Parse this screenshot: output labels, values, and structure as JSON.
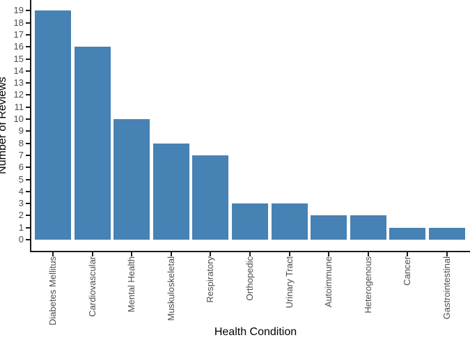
{
  "figure": {
    "background_color": "#ffffff"
  },
  "chart_data": {
    "type": "bar",
    "title": "",
    "xlabel": "Health Condition",
    "ylabel": "Number of Reviews",
    "categories": [
      "Diabetes Mellitus",
      "Cardiovascular",
      "Mental Health",
      "Muskuloskeletal",
      "Respiratory",
      "Orthopedic",
      "Urinary Tract",
      "Autoimmune",
      "Heterogenous",
      "Cancer",
      "Gastrointestinal"
    ],
    "values": [
      19,
      16,
      10,
      8,
      7,
      3,
      3,
      2,
      2,
      1,
      1
    ],
    "ylim": [
      0,
      19
    ],
    "yticks": [
      0,
      1,
      2,
      3,
      4,
      5,
      6,
      7,
      8,
      9,
      10,
      11,
      12,
      13,
      14,
      15,
      16,
      17,
      18,
      19
    ],
    "grid": false,
    "legend": "none",
    "bar_color": "#4682B4",
    "axis_color": "#1a1a1a",
    "tick_label_color": "#4D4D4D",
    "axis_title_color": "#000000"
  }
}
